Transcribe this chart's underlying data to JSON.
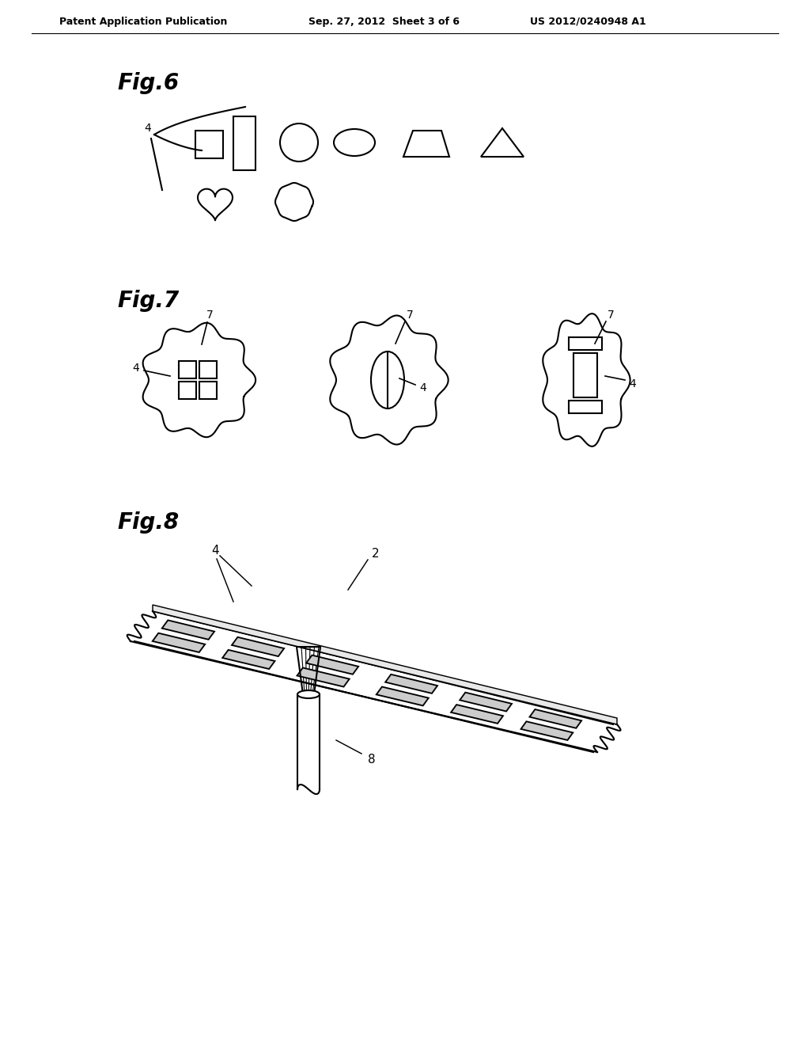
{
  "bg_color": "#ffffff",
  "header_left": "Patent Application Publication",
  "header_center": "Sep. 27, 2012  Sheet 3 of 6",
  "header_right": "US 2012/0240948 A1",
  "fig6_label": "Fig.6",
  "fig7_label": "Fig.7",
  "fig8_label": "Fig.8",
  "line_color": "#000000",
  "line_width": 1.5
}
